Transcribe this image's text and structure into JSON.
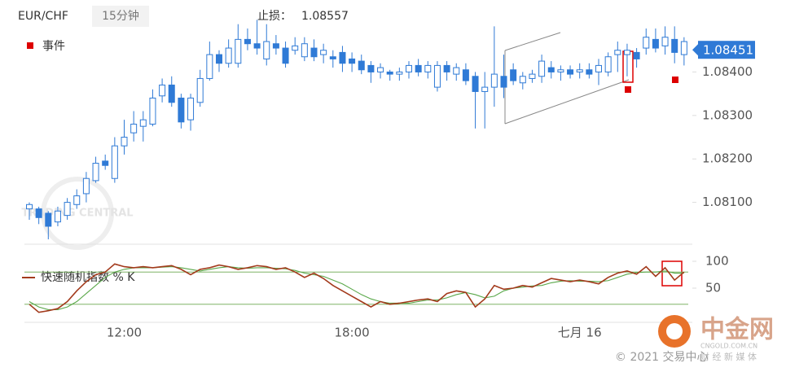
{
  "chart_data": [
    {
      "type": "candlestick",
      "title": "EUR/CHF",
      "timeframe": "15分钟",
      "stop_loss_label": "止损：",
      "stop_loss": 1.08557,
      "last_price": 1.08451,
      "last_price_color": "#2f7ad6",
      "event_legend": "事件",
      "up_color": "#ffffff",
      "down_color": "#2f7ad6",
      "edge_color": "#2f7ad6",
      "ylim": [
        1.08,
        1.0856
      ],
      "yticks": [
        {
          "value": 1.084,
          "label": "1.08400"
        },
        {
          "value": 1.083,
          "label": "1.08300"
        },
        {
          "value": 1.082,
          "label": "1.08200"
        },
        {
          "value": 1.081,
          "label": "1.08100"
        }
      ],
      "open": [
        1.08085,
        1.08085,
        1.08075,
        1.08055,
        1.0807,
        1.08095,
        1.0812,
        1.0815,
        1.08195,
        1.08155,
        1.0823,
        1.0826,
        1.08275,
        1.0828,
        1.08345,
        1.0837,
        1.0834,
        1.0829,
        1.0833,
        1.08385,
        1.0844,
        1.0842,
        1.0842,
        1.08475,
        1.08465,
        1.0843,
        1.08465,
        1.08455,
        1.0845,
        1.08435,
        1.08455,
        1.0844,
        1.08435,
        1.08445,
        1.0843,
        1.08425,
        1.08415,
        1.084,
        1.084,
        1.08395,
        1.084,
        1.08415,
        1.084,
        1.08365,
        1.08415,
        1.08395,
        1.08405,
        1.0839,
        1.08355,
        1.08365,
        1.0839,
        1.08405,
        1.08375,
        1.08385,
        1.0839,
        1.0841,
        1.084,
        1.08405,
        1.084,
        1.08405,
        1.084,
        1.084,
        1.0844,
        1.0844,
        1.08445,
        1.08455,
        1.08475,
        1.0846,
        1.08475,
        1.0844
      ],
      "high": [
        1.081,
        1.0809,
        1.0808,
        1.0809,
        1.0811,
        1.0813,
        1.0817,
        1.08205,
        1.0821,
        1.0825,
        1.0829,
        1.0831,
        1.0831,
        1.0836,
        1.08385,
        1.0839,
        1.0835,
        1.0835,
        1.08405,
        1.0847,
        1.0845,
        1.08475,
        1.0851,
        1.085,
        1.0852,
        1.0851,
        1.08485,
        1.0847,
        1.0848,
        1.0848,
        1.08475,
        1.08465,
        1.0845,
        1.0846,
        1.08445,
        1.0844,
        1.08425,
        1.0842,
        1.08405,
        1.0841,
        1.08425,
        1.0843,
        1.08425,
        1.08425,
        1.08425,
        1.0842,
        1.0842,
        1.084,
        1.084,
        1.08505,
        1.0844,
        1.0842,
        1.084,
        1.08405,
        1.0844,
        1.08425,
        1.08415,
        1.08415,
        1.0842,
        1.0842,
        1.0843,
        1.08445,
        1.0847,
        1.08465,
        1.08455,
        1.085,
        1.085,
        1.08505,
        1.08505,
        1.0848
      ],
      "low": [
        1.0806,
        1.0805,
        1.08015,
        1.08045,
        1.0806,
        1.08085,
        1.081,
        1.08145,
        1.08175,
        1.08145,
        1.0821,
        1.0824,
        1.0824,
        1.08275,
        1.0833,
        1.0832,
        1.0827,
        1.08265,
        1.0832,
        1.0838,
        1.084,
        1.0841,
        1.0841,
        1.0845,
        1.0844,
        1.08415,
        1.0844,
        1.0841,
        1.0844,
        1.08425,
        1.08425,
        1.0842,
        1.0841,
        1.084,
        1.084,
        1.08395,
        1.08375,
        1.08385,
        1.0838,
        1.0838,
        1.08385,
        1.0839,
        1.08385,
        1.08355,
        1.0838,
        1.0838,
        1.0837,
        1.0827,
        1.0827,
        1.0832,
        1.0834,
        1.0837,
        1.0836,
        1.08375,
        1.08375,
        1.08385,
        1.0838,
        1.08385,
        1.08385,
        1.08385,
        1.0837,
        1.0839,
        1.084,
        1.0839,
        1.0841,
        1.0844,
        1.08445,
        1.0844,
        1.0842,
        1.08415
      ],
      "close": [
        1.08095,
        1.08065,
        1.08045,
        1.0808,
        1.081,
        1.08115,
        1.08155,
        1.0819,
        1.08185,
        1.0823,
        1.0825,
        1.0828,
        1.0829,
        1.0834,
        1.0837,
        1.0833,
        1.08285,
        1.0834,
        1.08385,
        1.0844,
        1.0842,
        1.08455,
        1.08475,
        1.08465,
        1.08455,
        1.0847,
        1.08455,
        1.0842,
        1.0846,
        1.08465,
        1.08435,
        1.0845,
        1.0843,
        1.0842,
        1.0842,
        1.08405,
        1.084,
        1.0841,
        1.08395,
        1.084,
        1.08415,
        1.084,
        1.08415,
        1.08415,
        1.084,
        1.0841,
        1.0838,
        1.08355,
        1.08365,
        1.08395,
        1.08365,
        1.0838,
        1.0839,
        1.08395,
        1.08425,
        1.084,
        1.08405,
        1.08395,
        1.08405,
        1.08395,
        1.08415,
        1.08435,
        1.0845,
        1.0845,
        1.0843,
        1.0848,
        1.08455,
        1.0848,
        1.08445,
        1.0847
      ]
    },
    {
      "type": "line",
      "ylim": [
        0,
        100
      ],
      "yticks": [
        100,
        50
      ],
      "levels": [
        80,
        20
      ],
      "level_color": "#6aa84f",
      "categories": [
        null,
        null,
        null,
        null,
        null,
        null,
        null,
        null,
        null,
        null,
        "12:00",
        null,
        null,
        null,
        null,
        null,
        null,
        null,
        null,
        null,
        null,
        null,
        null,
        null,
        null,
        null,
        null,
        null,
        null,
        null,
        null,
        null,
        null,
        null,
        "18:00",
        null,
        null,
        null,
        null,
        null,
        null,
        null,
        null,
        null,
        null,
        null,
        null,
        null,
        null,
        null,
        null,
        null,
        null,
        null,
        null,
        null,
        null,
        null,
        "七月 16",
        null,
        null,
        null,
        null,
        null,
        null,
        null,
        null,
        null,
        null,
        null
      ],
      "series": [
        {
          "name": "快速随机指数 % K",
          "color": "#a33a1c",
          "values": [
            20,
            5,
            8,
            12,
            25,
            45,
            62,
            75,
            80,
            95,
            90,
            88,
            90,
            88,
            90,
            92,
            85,
            75,
            85,
            88,
            93,
            90,
            85,
            88,
            92,
            90,
            85,
            88,
            80,
            70,
            78,
            68,
            55,
            45,
            35,
            25,
            15,
            25,
            20,
            22,
            25,
            28,
            30,
            25,
            40,
            45,
            42,
            15,
            30,
            55,
            48,
            50,
            55,
            52,
            60,
            68,
            65,
            62,
            65,
            62,
            58,
            70,
            78,
            82,
            76,
            90,
            72,
            88,
            65,
            80
          ]
        },
        {
          "color": "#5aa84a",
          "values": [
            25,
            15,
            10,
            10,
            15,
            25,
            40,
            55,
            70,
            80,
            85,
            88,
            88,
            88,
            89,
            90,
            88,
            85,
            82,
            85,
            88,
            90,
            88,
            87,
            88,
            88,
            87,
            86,
            83,
            78,
            75,
            72,
            65,
            58,
            48,
            38,
            30,
            25,
            22,
            22,
            22,
            25,
            28,
            28,
            32,
            38,
            42,
            38,
            32,
            35,
            45,
            50,
            52,
            54,
            55,
            60,
            63,
            64,
            63,
            63,
            62,
            64,
            70,
            76,
            79,
            80,
            80,
            82,
            78,
            78
          ]
        }
      ]
    }
  ],
  "watermark": {
    "name": "TRADING CENTRAL",
    "brand": "中金网",
    "site": "CNGOLD.COM.CN",
    "slogan": "财 经 新 媒 体"
  },
  "copyright": "© 2021 交易中心"
}
